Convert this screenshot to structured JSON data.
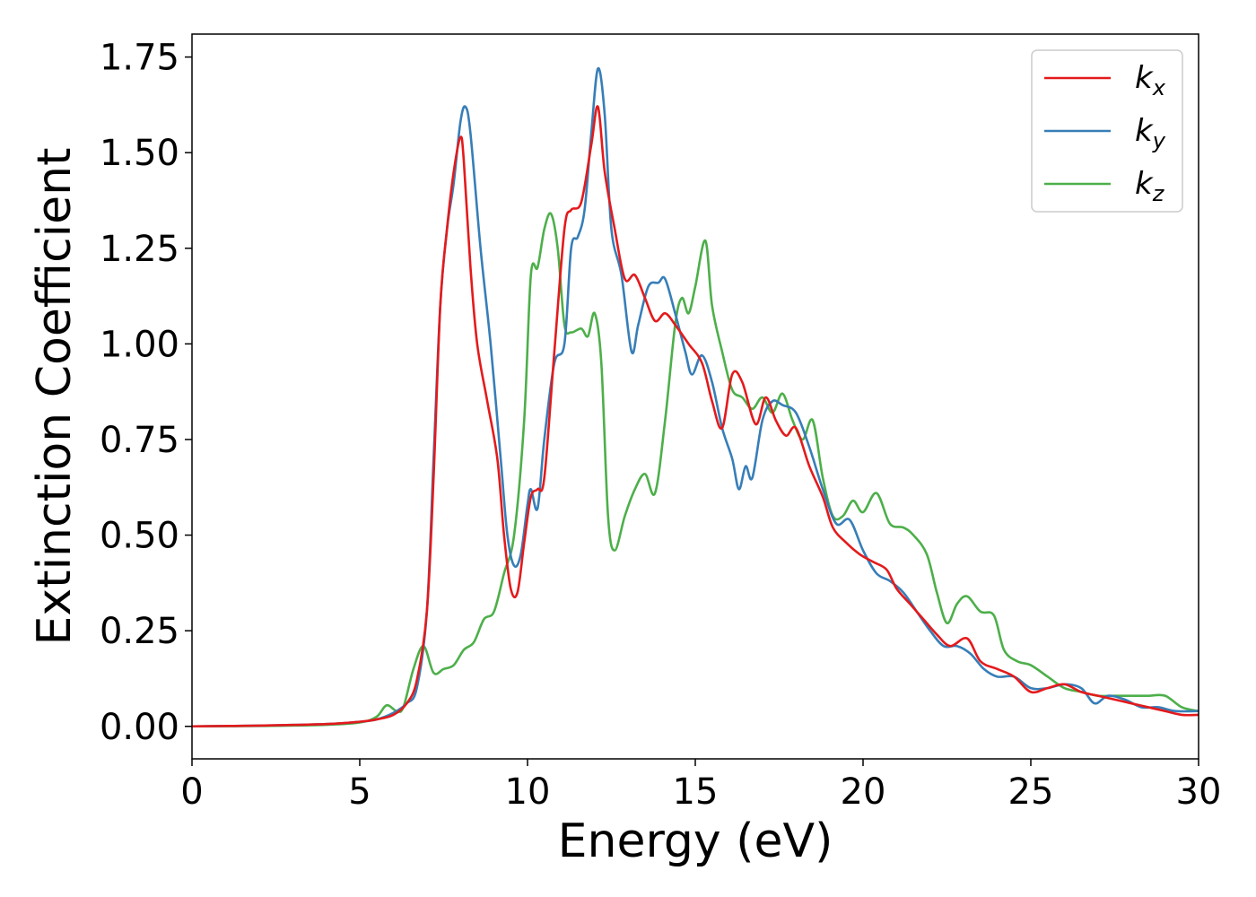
{
  "chart_data": {
    "type": "line",
    "title": "",
    "xlabel": "Energy (eV)",
    "ylabel": "Extinction Coefficient",
    "xlim": [
      0,
      30
    ],
    "ylim": [
      -0.085,
      1.81
    ],
    "x_ticks": [
      0,
      5,
      10,
      15,
      20,
      25,
      30
    ],
    "y_ticks": [
      0.0,
      0.25,
      0.5,
      0.75,
      1.0,
      1.25,
      1.5,
      1.75
    ],
    "x_tick_labels": [
      "0",
      "5",
      "10",
      "15",
      "20",
      "25",
      "30"
    ],
    "y_tick_labels": [
      "0.00",
      "0.25",
      "0.50",
      "0.75",
      "1.00",
      "1.25",
      "1.50",
      "1.75"
    ],
    "grid": false,
    "legend": {
      "position": "top-right"
    },
    "series": [
      {
        "name": "k_x",
        "label_base": "k",
        "label_sub": "x",
        "color": "#e41a1c",
        "points": [
          [
            0,
            0.0
          ],
          [
            2,
            0.002
          ],
          [
            4,
            0.006
          ],
          [
            5,
            0.012
          ],
          [
            5.5,
            0.018
          ],
          [
            6,
            0.03
          ],
          [
            6.4,
            0.06
          ],
          [
            6.7,
            0.12
          ],
          [
            7.0,
            0.3
          ],
          [
            7.2,
            0.65
          ],
          [
            7.4,
            1.1
          ],
          [
            7.6,
            1.3
          ],
          [
            7.8,
            1.45
          ],
          [
            8.0,
            1.54
          ],
          [
            8.1,
            1.48
          ],
          [
            8.3,
            1.2
          ],
          [
            8.5,
            1.0
          ],
          [
            8.8,
            0.85
          ],
          [
            9.1,
            0.7
          ],
          [
            9.3,
            0.5
          ],
          [
            9.5,
            0.36
          ],
          [
            9.7,
            0.35
          ],
          [
            9.9,
            0.48
          ],
          [
            10.1,
            0.6
          ],
          [
            10.3,
            0.62
          ],
          [
            10.5,
            0.65
          ],
          [
            10.8,
            0.98
          ],
          [
            11.1,
            1.3
          ],
          [
            11.3,
            1.35
          ],
          [
            11.6,
            1.37
          ],
          [
            11.9,
            1.52
          ],
          [
            12.1,
            1.62
          ],
          [
            12.3,
            1.45
          ],
          [
            12.6,
            1.3
          ],
          [
            12.9,
            1.17
          ],
          [
            13.2,
            1.18
          ],
          [
            13.5,
            1.12
          ],
          [
            13.8,
            1.06
          ],
          [
            14.1,
            1.08
          ],
          [
            14.4,
            1.05
          ],
          [
            14.8,
            1.0
          ],
          [
            15.2,
            0.95
          ],
          [
            15.5,
            0.85
          ],
          [
            15.8,
            0.78
          ],
          [
            16.1,
            0.92
          ],
          [
            16.4,
            0.9
          ],
          [
            16.8,
            0.79
          ],
          [
            17.1,
            0.86
          ],
          [
            17.4,
            0.8
          ],
          [
            17.7,
            0.76
          ],
          [
            18.0,
            0.78
          ],
          [
            18.4,
            0.68
          ],
          [
            18.8,
            0.6
          ],
          [
            19.1,
            0.52
          ],
          [
            19.5,
            0.48
          ],
          [
            19.9,
            0.45
          ],
          [
            20.3,
            0.43
          ],
          [
            20.7,
            0.41
          ],
          [
            21.0,
            0.36
          ],
          [
            21.4,
            0.32
          ],
          [
            21.8,
            0.28
          ],
          [
            22.2,
            0.24
          ],
          [
            22.6,
            0.21
          ],
          [
            23.1,
            0.23
          ],
          [
            23.5,
            0.17
          ],
          [
            24.0,
            0.15
          ],
          [
            24.5,
            0.13
          ],
          [
            25.0,
            0.09
          ],
          [
            25.5,
            0.1
          ],
          [
            26.0,
            0.11
          ],
          [
            26.5,
            0.09
          ],
          [
            27.0,
            0.08
          ],
          [
            27.5,
            0.07
          ],
          [
            28.0,
            0.06
          ],
          [
            28.5,
            0.05
          ],
          [
            29.0,
            0.04
          ],
          [
            29.5,
            0.03
          ],
          [
            30.0,
            0.03
          ]
        ]
      },
      {
        "name": "k_y",
        "label_base": "k",
        "label_sub": "y",
        "color": "#377eb8",
        "points": [
          [
            0,
            0.0
          ],
          [
            2,
            0.002
          ],
          [
            4,
            0.006
          ],
          [
            5,
            0.012
          ],
          [
            5.5,
            0.018
          ],
          [
            6,
            0.035
          ],
          [
            6.4,
            0.06
          ],
          [
            6.7,
            0.1
          ],
          [
            7.0,
            0.3
          ],
          [
            7.2,
            0.7
          ],
          [
            7.4,
            1.1
          ],
          [
            7.6,
            1.3
          ],
          [
            7.8,
            1.42
          ],
          [
            8.0,
            1.58
          ],
          [
            8.15,
            1.62
          ],
          [
            8.3,
            1.55
          ],
          [
            8.6,
            1.25
          ],
          [
            8.9,
            1.0
          ],
          [
            9.2,
            0.7
          ],
          [
            9.4,
            0.5
          ],
          [
            9.6,
            0.42
          ],
          [
            9.8,
            0.45
          ],
          [
            10.0,
            0.58
          ],
          [
            10.1,
            0.62
          ],
          [
            10.3,
            0.57
          ],
          [
            10.5,
            0.75
          ],
          [
            10.8,
            0.95
          ],
          [
            11.1,
            1.0
          ],
          [
            11.3,
            1.25
          ],
          [
            11.5,
            1.28
          ],
          [
            11.7,
            1.35
          ],
          [
            11.9,
            1.55
          ],
          [
            12.1,
            1.72
          ],
          [
            12.3,
            1.6
          ],
          [
            12.5,
            1.3
          ],
          [
            12.8,
            1.18
          ],
          [
            13.1,
            0.98
          ],
          [
            13.3,
            1.05
          ],
          [
            13.6,
            1.15
          ],
          [
            13.9,
            1.16
          ],
          [
            14.1,
            1.17
          ],
          [
            14.4,
            1.08
          ],
          [
            14.7,
            0.98
          ],
          [
            14.9,
            0.92
          ],
          [
            15.2,
            0.97
          ],
          [
            15.5,
            0.9
          ],
          [
            15.8,
            0.78
          ],
          [
            16.1,
            0.7
          ],
          [
            16.3,
            0.62
          ],
          [
            16.5,
            0.68
          ],
          [
            16.7,
            0.65
          ],
          [
            17.0,
            0.8
          ],
          [
            17.3,
            0.85
          ],
          [
            17.6,
            0.84
          ],
          [
            18.0,
            0.82
          ],
          [
            18.4,
            0.73
          ],
          [
            18.8,
            0.62
          ],
          [
            19.2,
            0.53
          ],
          [
            19.6,
            0.54
          ],
          [
            20.0,
            0.46
          ],
          [
            20.4,
            0.4
          ],
          [
            20.8,
            0.38
          ],
          [
            21.2,
            0.35
          ],
          [
            21.6,
            0.3
          ],
          [
            22.0,
            0.25
          ],
          [
            22.4,
            0.21
          ],
          [
            22.8,
            0.21
          ],
          [
            23.2,
            0.19
          ],
          [
            23.6,
            0.15
          ],
          [
            24.0,
            0.13
          ],
          [
            24.5,
            0.13
          ],
          [
            25.0,
            0.1
          ],
          [
            25.5,
            0.1
          ],
          [
            26.0,
            0.11
          ],
          [
            26.5,
            0.1
          ],
          [
            26.9,
            0.06
          ],
          [
            27.3,
            0.08
          ],
          [
            27.8,
            0.07
          ],
          [
            28.3,
            0.05
          ],
          [
            28.8,
            0.05
          ],
          [
            29.3,
            0.04
          ],
          [
            30.0,
            0.04
          ]
        ]
      },
      {
        "name": "k_z",
        "label_base": "k",
        "label_sub": "z",
        "color": "#4daf4a",
        "points": [
          [
            0,
            0.0
          ],
          [
            2,
            0.001
          ],
          [
            4,
            0.004
          ],
          [
            5,
            0.01
          ],
          [
            5.5,
            0.025
          ],
          [
            5.8,
            0.055
          ],
          [
            6.1,
            0.04
          ],
          [
            6.3,
            0.05
          ],
          [
            6.6,
            0.15
          ],
          [
            6.9,
            0.21
          ],
          [
            7.2,
            0.14
          ],
          [
            7.5,
            0.15
          ],
          [
            7.8,
            0.16
          ],
          [
            8.1,
            0.2
          ],
          [
            8.4,
            0.22
          ],
          [
            8.7,
            0.28
          ],
          [
            9.0,
            0.3
          ],
          [
            9.3,
            0.4
          ],
          [
            9.6,
            0.5
          ],
          [
            9.9,
            0.8
          ],
          [
            10.1,
            1.18
          ],
          [
            10.3,
            1.2
          ],
          [
            10.5,
            1.3
          ],
          [
            10.7,
            1.34
          ],
          [
            10.9,
            1.25
          ],
          [
            11.1,
            1.05
          ],
          [
            11.3,
            1.03
          ],
          [
            11.6,
            1.04
          ],
          [
            11.8,
            1.02
          ],
          [
            12.0,
            1.08
          ],
          [
            12.2,
            0.95
          ],
          [
            12.4,
            0.55
          ],
          [
            12.6,
            0.46
          ],
          [
            12.9,
            0.55
          ],
          [
            13.2,
            0.62
          ],
          [
            13.5,
            0.66
          ],
          [
            13.8,
            0.61
          ],
          [
            14.1,
            0.8
          ],
          [
            14.4,
            1.05
          ],
          [
            14.6,
            1.12
          ],
          [
            14.8,
            1.08
          ],
          [
            15.0,
            1.15
          ],
          [
            15.3,
            1.27
          ],
          [
            15.5,
            1.1
          ],
          [
            15.8,
            0.98
          ],
          [
            16.1,
            0.88
          ],
          [
            16.4,
            0.86
          ],
          [
            16.7,
            0.83
          ],
          [
            17.0,
            0.86
          ],
          [
            17.3,
            0.82
          ],
          [
            17.6,
            0.87
          ],
          [
            17.9,
            0.8
          ],
          [
            18.2,
            0.75
          ],
          [
            18.5,
            0.8
          ],
          [
            18.8,
            0.65
          ],
          [
            19.1,
            0.55
          ],
          [
            19.4,
            0.55
          ],
          [
            19.7,
            0.59
          ],
          [
            20.0,
            0.56
          ],
          [
            20.4,
            0.61
          ],
          [
            20.8,
            0.53
          ],
          [
            21.2,
            0.52
          ],
          [
            21.5,
            0.5
          ],
          [
            21.9,
            0.45
          ],
          [
            22.2,
            0.35
          ],
          [
            22.5,
            0.27
          ],
          [
            22.8,
            0.32
          ],
          [
            23.1,
            0.34
          ],
          [
            23.5,
            0.3
          ],
          [
            23.9,
            0.29
          ],
          [
            24.2,
            0.2
          ],
          [
            24.6,
            0.17
          ],
          [
            25.0,
            0.16
          ],
          [
            25.5,
            0.13
          ],
          [
            26.0,
            0.1
          ],
          [
            26.5,
            0.09
          ],
          [
            27.0,
            0.08
          ],
          [
            27.5,
            0.08
          ],
          [
            28.0,
            0.08
          ],
          [
            28.5,
            0.08
          ],
          [
            29.0,
            0.08
          ],
          [
            29.5,
            0.05
          ],
          [
            30.0,
            0.04
          ]
        ]
      }
    ]
  }
}
